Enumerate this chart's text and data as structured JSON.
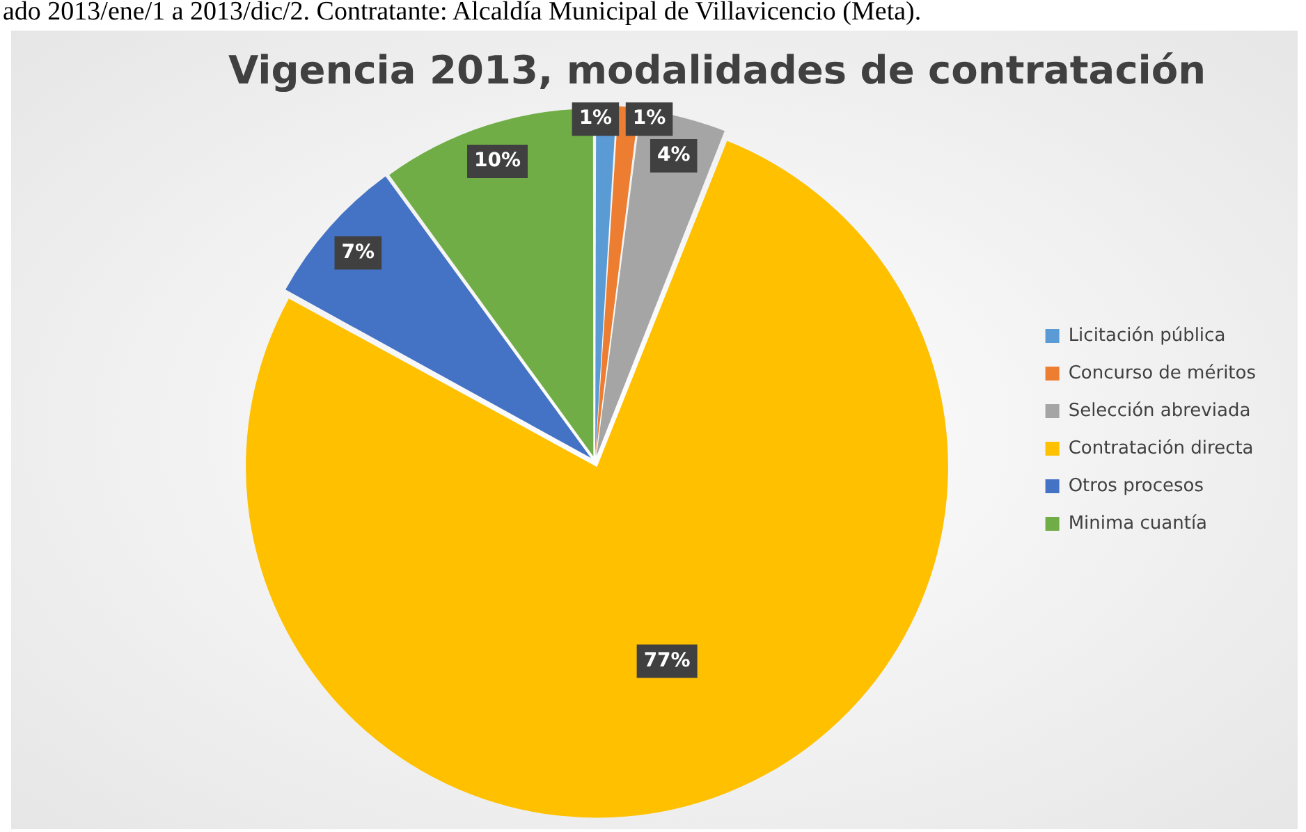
{
  "chart_data": {
    "type": "pie",
    "title": "Vigencia 2013, modalidades de contratación",
    "categories": [
      "Licitación pública",
      "Concurso de méritos",
      "Selección abreviada",
      "Contratación directa",
      "Otros procesos",
      "Minima cuantía"
    ],
    "values": [
      1,
      1,
      4,
      77,
      7,
      10
    ],
    "colors": [
      "#5b9bd5",
      "#ed7d31",
      "#a5a5a5",
      "#ffc000",
      "#4472c4",
      "#70ad47"
    ],
    "value_labels": [
      "1%",
      "1%",
      "4%",
      "77%",
      "7%",
      "10%"
    ],
    "legend": "right",
    "annotations": [
      "ado 2013/ene/1 a 2013/dic/2. Contratante: Alcaldía Municipal de Villavicencio (Meta)."
    ]
  }
}
